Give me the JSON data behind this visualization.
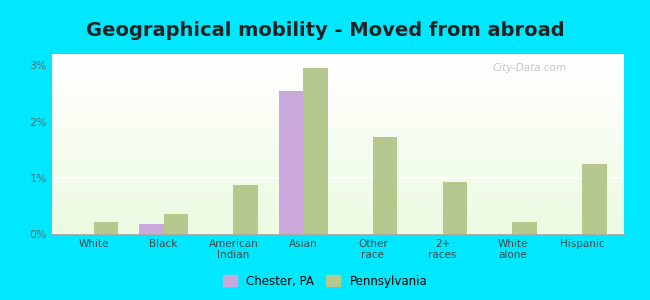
{
  "title": "Geographical mobility - Moved from abroad",
  "categories": [
    "White",
    "Black",
    "American\nIndian",
    "Asian",
    "Other\nrace",
    "2+\nraces",
    "White\nalone",
    "Hispanic"
  ],
  "chester_values": [
    0.0,
    0.18,
    0.0,
    2.55,
    0.0,
    0.0,
    0.0,
    0.0
  ],
  "pennsylvania_values": [
    0.22,
    0.35,
    0.88,
    2.95,
    1.72,
    0.93,
    0.22,
    1.25
  ],
  "chester_color": "#c9a8dc",
  "pennsylvania_color": "#b5c98e",
  "background_color": "#00e8ff",
  "ylim": [
    0,
    3.2
  ],
  "yticks": [
    0,
    1,
    2,
    3
  ],
  "ytick_labels": [
    "0%",
    "1%",
    "2%",
    "3%"
  ],
  "legend_chester": "Chester, PA",
  "legend_pennsylvania": "Pennsylvania",
  "title_fontsize": 14,
  "bar_width": 0.35,
  "watermark": "City-Data.com"
}
